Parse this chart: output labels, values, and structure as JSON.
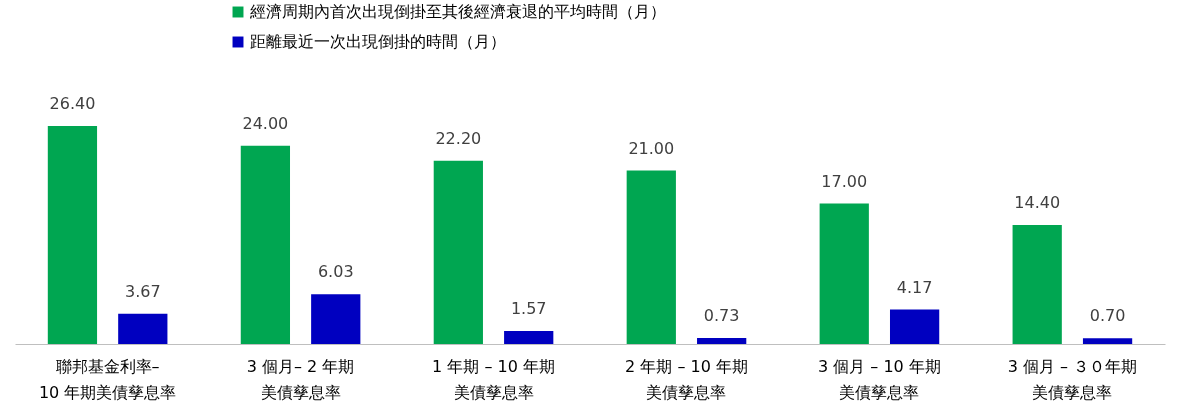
{
  "chart_data": {
    "type": "bar",
    "categories": [
      "聯邦基金利率–10 年期美債孳息率",
      "3 個月– 2 年期美債孳息率",
      "1 年期 – 10 年期美債孳息率",
      "2 年期 – 10 年期美債孳息率",
      "3 個月 – 10 年期美債孳息率",
      "3 個月 –  ３０年期美債孳息率"
    ],
    "series": [
      {
        "name": "經濟周期內首次出現倒掛至其後經濟衰退的平均時間（月）",
        "color": "#00a651",
        "values": [
          26.4,
          24.0,
          22.2,
          21.0,
          17.0,
          14.4
        ],
        "value_labels": [
          "26.40",
          "24.00",
          "22.20",
          "21.00",
          "17.00",
          "14.40"
        ]
      },
      {
        "name": "距離最近一次出現倒掛的時間（月）",
        "color": "#0000c0",
        "values": [
          3.67,
          6.03,
          1.57,
          0.73,
          4.17,
          0.7
        ],
        "value_labels": [
          "3.67",
          "6.03",
          "1.57",
          "0.73",
          "4.17",
          "0.70"
        ]
      }
    ],
    "legend": "top",
    "grid": false
  }
}
